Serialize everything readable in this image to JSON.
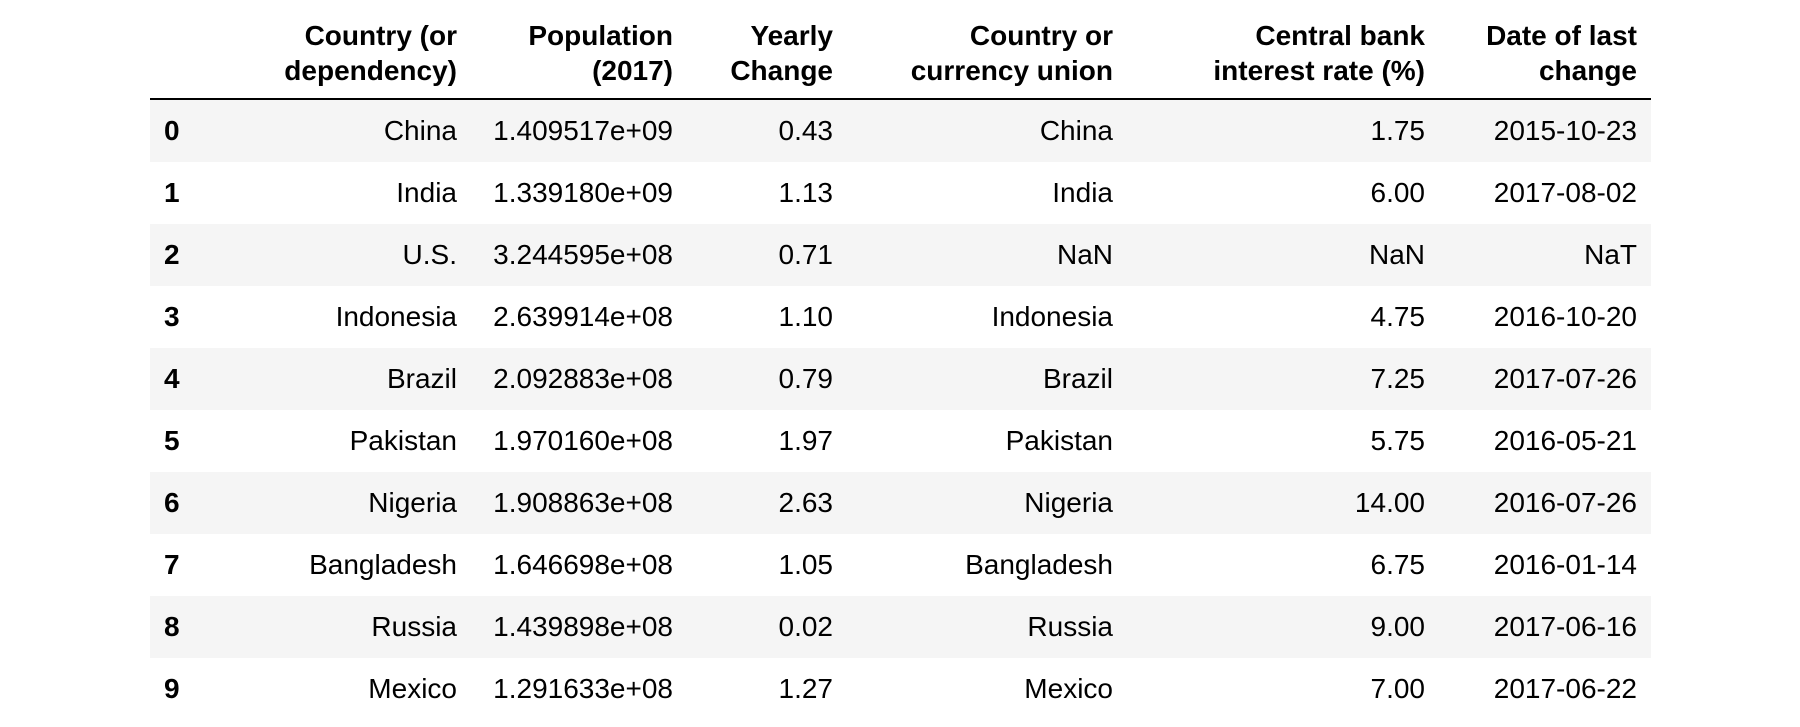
{
  "table": {
    "columns": [
      "",
      "Country (or\ndependency)",
      "Population\n(2017)",
      "Yearly\nChange",
      "Country or\ncurrency union",
      "Central bank\ninterest rate (%)",
      "Date of last\nchange"
    ],
    "rows": [
      {
        "index": "0",
        "country": "China",
        "population": "1.409517e+09",
        "yearly_change": "0.43",
        "union": "China",
        "rate": "1.75",
        "date": "2015-10-23"
      },
      {
        "index": "1",
        "country": "India",
        "population": "1.339180e+09",
        "yearly_change": "1.13",
        "union": "India",
        "rate": "6.00",
        "date": "2017-08-02"
      },
      {
        "index": "2",
        "country": "U.S.",
        "population": "3.244595e+08",
        "yearly_change": "0.71",
        "union": "NaN",
        "rate": "NaN",
        "date": "NaT"
      },
      {
        "index": "3",
        "country": "Indonesia",
        "population": "2.639914e+08",
        "yearly_change": "1.10",
        "union": "Indonesia",
        "rate": "4.75",
        "date": "2016-10-20"
      },
      {
        "index": "4",
        "country": "Brazil",
        "population": "2.092883e+08",
        "yearly_change": "0.79",
        "union": "Brazil",
        "rate": "7.25",
        "date": "2017-07-26"
      },
      {
        "index": "5",
        "country": "Pakistan",
        "population": "1.970160e+08",
        "yearly_change": "1.97",
        "union": "Pakistan",
        "rate": "5.75",
        "date": "2016-05-21"
      },
      {
        "index": "6",
        "country": "Nigeria",
        "population": "1.908863e+08",
        "yearly_change": "2.63",
        "union": "Nigeria",
        "rate": "14.00",
        "date": "2016-07-26"
      },
      {
        "index": "7",
        "country": "Bangladesh",
        "population": "1.646698e+08",
        "yearly_change": "1.05",
        "union": "Bangladesh",
        "rate": "6.75",
        "date": "2016-01-14"
      },
      {
        "index": "8",
        "country": "Russia",
        "population": "1.439898e+08",
        "yearly_change": "0.02",
        "union": "Russia",
        "rate": "9.00",
        "date": "2017-06-16"
      },
      {
        "index": "9",
        "country": "Mexico",
        "population": "1.291633e+08",
        "yearly_change": "1.27",
        "union": "Mexico",
        "rate": "7.00",
        "date": "2017-06-22"
      }
    ]
  }
}
